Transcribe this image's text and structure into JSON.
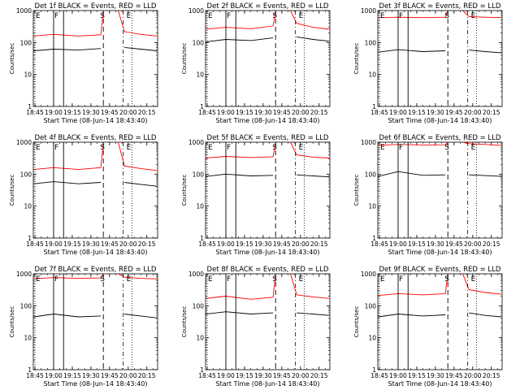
{
  "figure": {
    "ytick_labels": [
      "1",
      "10",
      "100",
      "1000"
    ],
    "xtick_labels": [
      "18:45",
      "19:00",
      "19:15",
      "19:30",
      "19:45",
      "20:00",
      "20:15"
    ],
    "xlabel": "Start Time (08-Jun-14 18:43:40)",
    "ylabel": "Counts/sec",
    "marker_labels": {
      "e1": "E",
      "f": "F",
      "s": "S",
      "e2": "E"
    }
  },
  "colors": {
    "events": "#000000",
    "lld": "#ff0000"
  },
  "chart_data": [
    {
      "type": "line",
      "title": "Det 1f BLACK = Events, RED = LLD",
      "x_unit": "time",
      "y_scale": "log",
      "ylim": [
        1,
        1000
      ],
      "xlim": [
        "18:43:40",
        "20:23:40"
      ],
      "markers": {
        "e1": "18:45",
        "f1": "19:00",
        "f2": "19:08",
        "s": "19:40",
        "e2": "19:56",
        "dot1": "19:56",
        "dot2": "20:03"
      },
      "series": [
        {
          "name": "Events",
          "color": "black",
          "segments": [
            {
              "x": [
                "18:44",
                "19:00",
                "19:20",
                "19:38"
              ],
              "y": [
                55,
                62,
                58,
                65
              ]
            },
            {
              "x": [
                "19:57",
                "20:10",
                "20:23"
              ],
              "y": [
                70,
                62,
                55
              ]
            }
          ]
        },
        {
          "name": "LLD",
          "color": "red",
          "segments": [
            {
              "x": [
                "18:44",
                "19:00",
                "19:20",
                "19:38",
                "19:40"
              ],
              "y": [
                160,
                180,
                160,
                175,
                1000
              ]
            },
            {
              "x": [
                "19:52",
                "19:57",
                "20:10",
                "20:23"
              ],
              "y": [
                1000,
                220,
                180,
                160
              ]
            }
          ]
        }
      ]
    },
    {
      "type": "line",
      "title": "Det 2f BLACK = Events, RED = LLD",
      "x_unit": "time",
      "y_scale": "log",
      "ylim": [
        1,
        1000
      ],
      "xlim": [
        "18:43:40",
        "20:23:40"
      ],
      "markers": {
        "e1": "18:45",
        "f1": "19:00",
        "f2": "19:08",
        "s": "19:40",
        "e2": "19:56",
        "dot1": "19:56",
        "dot2": "20:03"
      },
      "series": [
        {
          "name": "Events",
          "color": "black",
          "segments": [
            {
              "x": [
                "18:44",
                "19:00",
                "19:20",
                "19:38"
              ],
              "y": [
                105,
                125,
                115,
                140
              ]
            },
            {
              "x": [
                "19:57",
                "20:10",
                "20:23"
              ],
              "y": [
                150,
                125,
                110
              ]
            }
          ]
        },
        {
          "name": "LLD",
          "color": "red",
          "segments": [
            {
              "x": [
                "18:44",
                "19:00",
                "19:20",
                "19:38",
                "19:40"
              ],
              "y": [
                260,
                300,
                270,
                330,
                1000
              ]
            },
            {
              "x": [
                "19:52",
                "19:57",
                "20:10",
                "20:23"
              ],
              "y": [
                1000,
                400,
                300,
                260
              ]
            }
          ]
        }
      ]
    },
    {
      "type": "line",
      "title": "Det 3f BLACK = Events, RED = LLD",
      "x_unit": "time",
      "y_scale": "log",
      "ylim": [
        1,
        1000
      ],
      "xlim": [
        "18:43:40",
        "20:23:40"
      ],
      "markers": {
        "e1": "18:45",
        "f1": "19:00",
        "f2": "19:08",
        "s": "19:40",
        "e2": "19:56",
        "dot1": "19:56",
        "dot2": "20:03"
      },
      "series": [
        {
          "name": "Events",
          "color": "black",
          "segments": [
            {
              "x": [
                "18:44",
                "19:00",
                "19:20",
                "19:38"
              ],
              "y": [
                50,
                60,
                52,
                55
              ]
            },
            {
              "x": [
                "19:57",
                "20:10",
                "20:23"
              ],
              "y": [
                58,
                52,
                48
              ]
            }
          ]
        },
        {
          "name": "LLD",
          "color": "red",
          "segments": [
            {
              "x": [
                "18:44",
                "19:00",
                "19:20",
                "19:38",
                "19:40"
              ],
              "y": [
                600,
                620,
                600,
                620,
                1000
              ]
            },
            {
              "x": [
                "19:52",
                "19:57",
                "20:10",
                "20:23"
              ],
              "y": [
                1000,
                650,
                620,
                600
              ]
            }
          ]
        }
      ]
    },
    {
      "type": "line",
      "title": "Det 4f BLACK = Events, RED = LLD",
      "x_unit": "time",
      "y_scale": "log",
      "ylim": [
        1,
        1000
      ],
      "xlim": [
        "18:43:40",
        "20:23:40"
      ],
      "markers": {
        "e1": "18:45",
        "f1": "19:00",
        "f2": "19:08",
        "s": "19:40",
        "e2": "19:56",
        "dot1": "19:56",
        "dot2": "20:03"
      },
      "series": [
        {
          "name": "Events",
          "color": "black",
          "segments": [
            {
              "x": [
                "18:44",
                "19:00",
                "19:20",
                "19:38"
              ],
              "y": [
                50,
                58,
                50,
                55
              ]
            },
            {
              "x": [
                "19:57",
                "20:10",
                "20:23"
              ],
              "y": [
                55,
                48,
                42
              ]
            }
          ]
        },
        {
          "name": "LLD",
          "color": "red",
          "segments": [
            {
              "x": [
                "18:44",
                "19:00",
                "19:20",
                "19:38",
                "19:40"
              ],
              "y": [
                140,
                160,
                140,
                160,
                1000
              ]
            },
            {
              "x": [
                "19:52",
                "19:57",
                "20:10",
                "20:23"
              ],
              "y": [
                1000,
                180,
                150,
                130
              ]
            }
          ]
        }
      ]
    },
    {
      "type": "line",
      "title": "Det 5f BLACK = Events, RED = LLD",
      "x_unit": "time",
      "y_scale": "log",
      "ylim": [
        1,
        1000
      ],
      "xlim": [
        "18:43:40",
        "20:23:40"
      ],
      "markers": {
        "e1": "18:45",
        "f1": "19:00",
        "f2": "19:08",
        "s": "19:40",
        "e2": "19:56",
        "dot1": "19:56",
        "dot2": "20:03"
      },
      "series": [
        {
          "name": "Events",
          "color": "black",
          "segments": [
            {
              "x": [
                "18:44",
                "19:00",
                "19:20",
                "19:38"
              ],
              "y": [
                85,
                100,
                88,
                92
              ]
            },
            {
              "x": [
                "19:57",
                "20:10",
                "20:23"
              ],
              "y": [
                95,
                88,
                82
              ]
            }
          ]
        },
        {
          "name": "LLD",
          "color": "red",
          "segments": [
            {
              "x": [
                "18:44",
                "19:00",
                "19:20",
                "19:38",
                "19:40"
              ],
              "y": [
                320,
                360,
                330,
                350,
                1000
              ]
            },
            {
              "x": [
                "19:52",
                "19:57",
                "20:10",
                "20:23"
              ],
              "y": [
                1000,
                400,
                340,
                320
              ]
            }
          ]
        }
      ]
    },
    {
      "type": "line",
      "title": "Det 6f BLACK = Events, RED = LLD",
      "x_unit": "time",
      "y_scale": "log",
      "ylim": [
        1,
        1000
      ],
      "xlim": [
        "18:43:40",
        "20:23:40"
      ],
      "markers": {
        "e1": "18:45",
        "f1": "19:00",
        "f2": "19:08",
        "s": "19:40",
        "e2": "19:56",
        "dot1": "19:56",
        "dot2": "20:03"
      },
      "series": [
        {
          "name": "Events",
          "color": "black",
          "segments": [
            {
              "x": [
                "18:44",
                "19:00",
                "19:20",
                "19:38"
              ],
              "y": [
                85,
                120,
                92,
                95
              ]
            },
            {
              "x": [
                "19:57",
                "20:10",
                "20:23"
              ],
              "y": [
                95,
                90,
                85
              ]
            }
          ]
        },
        {
          "name": "LLD",
          "color": "red",
          "segments": [
            {
              "x": [
                "18:44",
                "19:00",
                "19:20",
                "19:38",
                "19:40"
              ],
              "y": [
                800,
                850,
                820,
                830,
                1000
              ]
            },
            {
              "x": [
                "19:52",
                "19:57",
                "20:10",
                "20:23"
              ],
              "y": [
                1000,
                900,
                850,
                800
              ]
            }
          ]
        }
      ]
    },
    {
      "type": "line",
      "title": "Det 7f BLACK = Events, RED = LLD",
      "x_unit": "time",
      "y_scale": "log",
      "ylim": [
        1,
        1000
      ],
      "xlim": [
        "18:43:40",
        "20:23:40"
      ],
      "markers": {
        "e1": "18:45",
        "f1": "19:00",
        "f2": "19:08",
        "s": "19:40",
        "e2": "19:56",
        "dot1": "19:56",
        "dot2": "20:03"
      },
      "series": [
        {
          "name": "Events",
          "color": "black",
          "segments": [
            {
              "x": [
                "18:44",
                "19:00",
                "19:20",
                "19:38"
              ],
              "y": [
                45,
                55,
                45,
                48
              ]
            },
            {
              "x": [
                "19:57",
                "20:10",
                "20:23"
              ],
              "y": [
                55,
                48,
                42
              ]
            }
          ]
        },
        {
          "name": "LLD",
          "color": "red",
          "segments": [
            {
              "x": [
                "18:44",
                "19:00",
                "19:20",
                "19:38",
                "19:40"
              ],
              "y": [
                700,
                760,
                720,
                740,
                1000
              ]
            },
            {
              "x": [
                "19:52",
                "19:57",
                "20:10",
                "20:23"
              ],
              "y": [
                1000,
                780,
                720,
                690
              ]
            }
          ]
        }
      ]
    },
    {
      "type": "line",
      "title": "Det 8f BLACK = Events, RED = LLD",
      "x_unit": "time",
      "y_scale": "log",
      "ylim": [
        1,
        1000
      ],
      "xlim": [
        "18:43:40",
        "20:23:40"
      ],
      "markers": {
        "e1": "18:45",
        "f1": "19:00",
        "f2": "19:08",
        "s": "19:40",
        "e2": "19:56",
        "dot1": "19:56",
        "dot2": "20:03"
      },
      "series": [
        {
          "name": "Events",
          "color": "black",
          "segments": [
            {
              "x": [
                "18:44",
                "19:00",
                "19:20",
                "19:38"
              ],
              "y": [
                55,
                65,
                55,
                60
              ]
            },
            {
              "x": [
                "19:57",
                "20:10",
                "20:23"
              ],
              "y": [
                60,
                55,
                50
              ]
            }
          ]
        },
        {
          "name": "LLD",
          "color": "red",
          "segments": [
            {
              "x": [
                "18:44",
                "19:00",
                "19:20",
                "19:38",
                "19:40"
              ],
              "y": [
                170,
                200,
                160,
                185,
                1000
              ]
            },
            {
              "x": [
                "19:52",
                "19:57",
                "20:10",
                "20:23"
              ],
              "y": [
                1000,
                220,
                190,
                170
              ]
            }
          ]
        }
      ]
    },
    {
      "type": "line",
      "title": "Det 9f BLACK = Events, RED = LLD",
      "x_unit": "time",
      "y_scale": "log",
      "ylim": [
        1,
        1000
      ],
      "xlim": [
        "18:43:40",
        "20:23:40"
      ],
      "markers": {
        "e1": "18:45",
        "f1": "19:00",
        "f2": "19:08",
        "s": "19:40",
        "e2": "19:56",
        "dot1": "19:56",
        "dot2": "20:03"
      },
      "series": [
        {
          "name": "Events",
          "color": "black",
          "segments": [
            {
              "x": [
                "18:44",
                "19:00",
                "19:20",
                "19:38"
              ],
              "y": [
                45,
                55,
                48,
                52
              ]
            },
            {
              "x": [
                "19:57",
                "20:10",
                "20:23"
              ],
              "y": [
                60,
                50,
                45
              ]
            }
          ]
        },
        {
          "name": "LLD",
          "color": "red",
          "segments": [
            {
              "x": [
                "18:44",
                "19:00",
                "19:20",
                "19:38",
                "19:40"
              ],
              "y": [
                210,
                240,
                220,
                240,
                1000
              ]
            },
            {
              "x": [
                "19:52",
                "19:57",
                "20:10",
                "20:23"
              ],
              "y": [
                1000,
                320,
                260,
                230
              ]
            }
          ]
        }
      ]
    }
  ]
}
